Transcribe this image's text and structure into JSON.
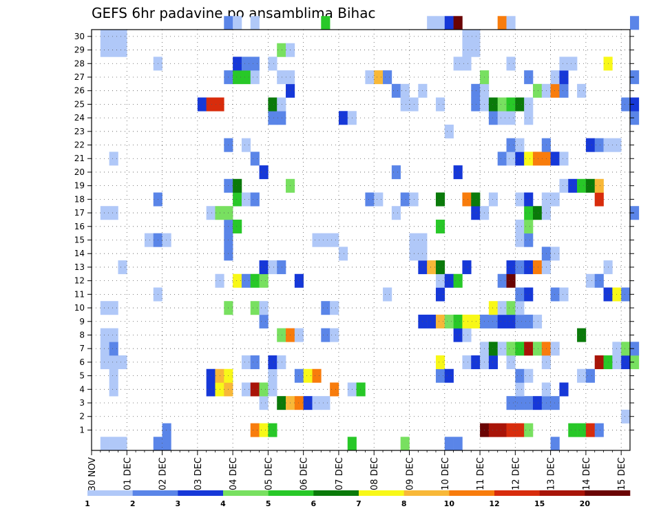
{
  "chart_data": {
    "type": "heatmap",
    "title": "GEFS 6hr padavine po ansamblima Bihac",
    "xlabel": "",
    "ylabel": "",
    "x_ticks": [
      "30 NOV",
      "01 DEC",
      "02 DEC",
      "03 DEC",
      "04 DEC",
      "05 DEC",
      "06 DEC",
      "07 DEC",
      "08 DEC",
      "09 DEC",
      "10 DEC",
      "11 DEC",
      "12 DEC",
      "13 DEC",
      "14 DEC",
      "15 DEC"
    ],
    "x_range_steps": [
      0,
      61
    ],
    "steps_per_day": 4,
    "y_ticks": [
      1,
      2,
      3,
      4,
      5,
      6,
      7,
      8,
      9,
      10,
      11,
      12,
      13,
      14,
      15,
      16,
      17,
      18,
      19,
      20,
      21,
      22,
      23,
      24,
      25,
      26,
      27,
      28,
      29,
      30
    ],
    "y_range": [
      0,
      30
    ],
    "grid": true,
    "colorbar": {
      "labels": [
        "1",
        "2",
        "3",
        "4",
        "5",
        "6",
        "7",
        "8",
        "10",
        "12",
        "15",
        "20"
      ],
      "colors": [
        "#b0c8f8",
        "#5a85e8",
        "#1638d8",
        "#78e060",
        "#28c828",
        "#0a7a0a",
        "#f8f818",
        "#f8b838",
        "#f87c0c",
        "#d82c0c",
        "#a81408",
        "#6a0404"
      ]
    },
    "cells": [
      [
        1,
        0,
        1
      ],
      [
        2,
        0,
        1
      ],
      [
        3,
        0,
        1
      ],
      [
        7,
        0,
        2
      ],
      [
        8,
        0,
        2
      ],
      [
        29,
        0,
        5
      ],
      [
        35,
        0,
        4
      ],
      [
        40,
        0,
        2
      ],
      [
        41,
        0,
        2
      ],
      [
        52,
        0,
        2
      ],
      [
        8,
        1,
        2
      ],
      [
        18,
        1,
        9
      ],
      [
        19,
        1,
        7
      ],
      [
        20,
        1,
        5
      ],
      [
        44,
        1,
        12
      ],
      [
        45,
        1,
        11
      ],
      [
        46,
        1,
        11
      ],
      [
        47,
        1,
        10
      ],
      [
        48,
        1,
        10
      ],
      [
        49,
        1,
        4
      ],
      [
        54,
        1,
        5
      ],
      [
        55,
        1,
        5
      ],
      [
        56,
        1,
        10
      ],
      [
        57,
        1,
        2
      ],
      [
        60,
        2,
        1
      ],
      [
        19,
        3,
        1
      ],
      [
        21,
        3,
        6
      ],
      [
        22,
        3,
        8
      ],
      [
        23,
        3,
        9
      ],
      [
        24,
        3,
        3
      ],
      [
        25,
        3,
        1
      ],
      [
        26,
        3,
        1
      ],
      [
        47,
        3,
        2
      ],
      [
        48,
        3,
        2
      ],
      [
        49,
        3,
        2
      ],
      [
        50,
        3,
        3
      ],
      [
        51,
        3,
        2
      ],
      [
        52,
        3,
        2
      ],
      [
        2,
        4,
        1
      ],
      [
        13,
        4,
        3
      ],
      [
        14,
        4,
        7
      ],
      [
        15,
        4,
        8
      ],
      [
        17,
        4,
        1
      ],
      [
        18,
        4,
        11
      ],
      [
        19,
        4,
        4
      ],
      [
        20,
        4,
        1
      ],
      [
        27,
        4,
        9
      ],
      [
        29,
        4,
        1
      ],
      [
        30,
        4,
        5
      ],
      [
        48,
        4,
        1
      ],
      [
        51,
        4,
        1
      ],
      [
        53,
        4,
        3
      ],
      [
        2,
        5,
        1
      ],
      [
        13,
        5,
        3
      ],
      [
        14,
        5,
        8
      ],
      [
        15,
        5,
        7
      ],
      [
        20,
        5,
        1
      ],
      [
        23,
        5,
        2
      ],
      [
        24,
        5,
        7
      ],
      [
        25,
        5,
        9
      ],
      [
        39,
        5,
        2
      ],
      [
        40,
        5,
        3
      ],
      [
        48,
        5,
        2
      ],
      [
        49,
        5,
        1
      ],
      [
        55,
        5,
        1
      ],
      [
        56,
        5,
        2
      ],
      [
        1,
        6,
        1
      ],
      [
        2,
        6,
        1
      ],
      [
        3,
        6,
        1
      ],
      [
        17,
        6,
        1
      ],
      [
        18,
        6,
        2
      ],
      [
        20,
        6,
        3
      ],
      [
        21,
        6,
        1
      ],
      [
        39,
        6,
        7
      ],
      [
        42,
        6,
        1
      ],
      [
        43,
        6,
        3
      ],
      [
        44,
        6,
        1
      ],
      [
        45,
        6,
        3
      ],
      [
        47,
        6,
        1
      ],
      [
        51,
        6,
        1
      ],
      [
        57,
        6,
        11
      ],
      [
        58,
        6,
        5
      ],
      [
        59,
        6,
        1
      ],
      [
        60,
        6,
        3
      ],
      [
        61,
        6,
        4
      ],
      [
        1,
        7,
        1
      ],
      [
        2,
        7,
        2
      ],
      [
        44,
        7,
        1
      ],
      [
        45,
        7,
        6
      ],
      [
        46,
        7,
        1
      ],
      [
        47,
        7,
        4
      ],
      [
        48,
        7,
        5
      ],
      [
        49,
        7,
        11
      ],
      [
        50,
        7,
        4
      ],
      [
        51,
        7,
        9
      ],
      [
        52,
        7,
        1
      ],
      [
        59,
        7,
        1
      ],
      [
        60,
        7,
        4
      ],
      [
        61,
        7,
        2
      ],
      [
        1,
        8,
        1
      ],
      [
        2,
        8,
        1
      ],
      [
        21,
        8,
        4
      ],
      [
        22,
        8,
        9
      ],
      [
        23,
        8,
        1
      ],
      [
        26,
        8,
        2
      ],
      [
        27,
        8,
        1
      ],
      [
        41,
        8,
        3
      ],
      [
        42,
        8,
        1
      ],
      [
        55,
        8,
        6
      ],
      [
        19,
        9,
        2
      ],
      [
        37,
        9,
        3
      ],
      [
        38,
        9,
        3
      ],
      [
        39,
        9,
        8
      ],
      [
        40,
        9,
        4
      ],
      [
        41,
        9,
        5
      ],
      [
        42,
        9,
        7
      ],
      [
        43,
        9,
        7
      ],
      [
        44,
        9,
        2
      ],
      [
        45,
        9,
        2
      ],
      [
        46,
        9,
        3
      ],
      [
        47,
        9,
        3
      ],
      [
        48,
        9,
        2
      ],
      [
        49,
        9,
        2
      ],
      [
        50,
        9,
        1
      ],
      [
        1,
        10,
        1
      ],
      [
        2,
        10,
        1
      ],
      [
        15,
        10,
        4
      ],
      [
        18,
        10,
        4
      ],
      [
        19,
        10,
        1
      ],
      [
        26,
        10,
        2
      ],
      [
        27,
        10,
        1
      ],
      [
        45,
        10,
        7
      ],
      [
        46,
        10,
        1
      ],
      [
        47,
        10,
        4
      ],
      [
        48,
        10,
        1
      ],
      [
        7,
        11,
        1
      ],
      [
        33,
        11,
        1
      ],
      [
        39,
        11,
        3
      ],
      [
        48,
        11,
        2
      ],
      [
        49,
        11,
        3
      ],
      [
        52,
        11,
        2
      ],
      [
        53,
        11,
        1
      ],
      [
        58,
        11,
        3
      ],
      [
        59,
        11,
        7
      ],
      [
        60,
        11,
        2
      ],
      [
        14,
        12,
        1
      ],
      [
        16,
        12,
        7
      ],
      [
        17,
        12,
        2
      ],
      [
        18,
        12,
        5
      ],
      [
        19,
        12,
        4
      ],
      [
        23,
        12,
        3
      ],
      [
        39,
        12,
        1
      ],
      [
        40,
        12,
        3
      ],
      [
        41,
        12,
        5
      ],
      [
        46,
        12,
        2
      ],
      [
        47,
        12,
        12
      ],
      [
        56,
        12,
        1
      ],
      [
        57,
        12,
        2
      ],
      [
        3,
        13,
        1
      ],
      [
        19,
        13,
        3
      ],
      [
        20,
        13,
        1
      ],
      [
        21,
        13,
        2
      ],
      [
        37,
        13,
        3
      ],
      [
        38,
        13,
        8
      ],
      [
        39,
        13,
        6
      ],
      [
        42,
        13,
        3
      ],
      [
        47,
        13,
        3
      ],
      [
        48,
        13,
        2
      ],
      [
        49,
        13,
        3
      ],
      [
        50,
        13,
        9
      ],
      [
        51,
        13,
        1
      ],
      [
        58,
        13,
        1
      ],
      [
        15,
        14,
        2
      ],
      [
        28,
        14,
        1
      ],
      [
        36,
        14,
        1
      ],
      [
        37,
        14,
        1
      ],
      [
        51,
        14,
        2
      ],
      [
        52,
        14,
        1
      ],
      [
        6,
        15,
        1
      ],
      [
        7,
        15,
        2
      ],
      [
        8,
        15,
        1
      ],
      [
        15,
        15,
        2
      ],
      [
        25,
        15,
        1
      ],
      [
        26,
        15,
        1
      ],
      [
        27,
        15,
        1
      ],
      [
        36,
        15,
        1
      ],
      [
        37,
        15,
        1
      ],
      [
        48,
        15,
        1
      ],
      [
        49,
        15,
        2
      ],
      [
        15,
        16,
        2
      ],
      [
        16,
        16,
        5
      ],
      [
        39,
        16,
        5
      ],
      [
        48,
        16,
        1
      ],
      [
        49,
        16,
        4
      ],
      [
        1,
        17,
        1
      ],
      [
        2,
        17,
        1
      ],
      [
        13,
        17,
        1
      ],
      [
        14,
        17,
        4
      ],
      [
        15,
        17,
        4
      ],
      [
        34,
        17,
        1
      ],
      [
        43,
        17,
        3
      ],
      [
        44,
        17,
        1
      ],
      [
        49,
        17,
        5
      ],
      [
        50,
        17,
        6
      ],
      [
        51,
        17,
        1
      ],
      [
        61,
        17,
        2
      ],
      [
        7,
        18,
        2
      ],
      [
        16,
        18,
        5
      ],
      [
        17,
        18,
        1
      ],
      [
        18,
        18,
        2
      ],
      [
        31,
        18,
        2
      ],
      [
        32,
        18,
        1
      ],
      [
        35,
        18,
        2
      ],
      [
        36,
        18,
        1
      ],
      [
        39,
        18,
        6
      ],
      [
        42,
        18,
        9
      ],
      [
        43,
        18,
        6
      ],
      [
        45,
        18,
        1
      ],
      [
        48,
        18,
        1
      ],
      [
        49,
        18,
        3
      ],
      [
        51,
        18,
        1
      ],
      [
        52,
        18,
        1
      ],
      [
        57,
        18,
        10
      ],
      [
        15,
        19,
        2
      ],
      [
        16,
        19,
        6
      ],
      [
        22,
        19,
        4
      ],
      [
        53,
        19,
        1
      ],
      [
        54,
        19,
        3
      ],
      [
        55,
        19,
        5
      ],
      [
        56,
        19,
        6
      ],
      [
        57,
        19,
        8
      ],
      [
        19,
        20,
        3
      ],
      [
        34,
        20,
        2
      ],
      [
        41,
        20,
        3
      ],
      [
        2,
        21,
        1
      ],
      [
        18,
        21,
        2
      ],
      [
        46,
        21,
        2
      ],
      [
        47,
        21,
        1
      ],
      [
        48,
        21,
        3
      ],
      [
        49,
        21,
        7
      ],
      [
        50,
        21,
        9
      ],
      [
        51,
        21,
        9
      ],
      [
        52,
        21,
        3
      ],
      [
        53,
        21,
        1
      ],
      [
        15,
        22,
        2
      ],
      [
        17,
        22,
        1
      ],
      [
        47,
        22,
        2
      ],
      [
        48,
        22,
        1
      ],
      [
        51,
        22,
        2
      ],
      [
        56,
        22,
        3
      ],
      [
        57,
        22,
        2
      ],
      [
        58,
        22,
        1
      ],
      [
        59,
        22,
        1
      ],
      [
        40,
        23,
        1
      ],
      [
        20,
        24,
        2
      ],
      [
        21,
        24,
        2
      ],
      [
        28,
        24,
        3
      ],
      [
        29,
        24,
        1
      ],
      [
        45,
        24,
        2
      ],
      [
        46,
        24,
        1
      ],
      [
        47,
        24,
        1
      ],
      [
        49,
        24,
        1
      ],
      [
        61,
        24,
        2
      ],
      [
        12,
        25,
        3
      ],
      [
        13,
        25,
        10
      ],
      [
        14,
        25,
        10
      ],
      [
        20,
        25,
        6
      ],
      [
        21,
        25,
        1
      ],
      [
        35,
        25,
        1
      ],
      [
        36,
        25,
        1
      ],
      [
        39,
        25,
        1
      ],
      [
        43,
        25,
        2
      ],
      [
        44,
        25,
        1
      ],
      [
        45,
        25,
        6
      ],
      [
        46,
        25,
        4
      ],
      [
        47,
        25,
        5
      ],
      [
        48,
        25,
        6
      ],
      [
        49,
        25,
        1
      ],
      [
        60,
        25,
        2
      ],
      [
        61,
        25,
        3
      ],
      [
        22,
        26,
        3
      ],
      [
        34,
        26,
        2
      ],
      [
        35,
        26,
        1
      ],
      [
        37,
        26,
        1
      ],
      [
        43,
        26,
        2
      ],
      [
        44,
        26,
        1
      ],
      [
        50,
        26,
        4
      ],
      [
        51,
        26,
        1
      ],
      [
        52,
        26,
        9
      ],
      [
        53,
        26,
        2
      ],
      [
        55,
        26,
        1
      ],
      [
        15,
        27,
        2
      ],
      [
        16,
        27,
        5
      ],
      [
        17,
        27,
        5
      ],
      [
        18,
        27,
        1
      ],
      [
        21,
        27,
        1
      ],
      [
        22,
        27,
        1
      ],
      [
        31,
        27,
        1
      ],
      [
        32,
        27,
        8
      ],
      [
        33,
        27,
        2
      ],
      [
        44,
        27,
        4
      ],
      [
        49,
        27,
        2
      ],
      [
        52,
        27,
        1
      ],
      [
        53,
        27,
        3
      ],
      [
        61,
        27,
        2
      ],
      [
        7,
        28,
        1
      ],
      [
        16,
        28,
        3
      ],
      [
        17,
        28,
        2
      ],
      [
        18,
        28,
        2
      ],
      [
        20,
        28,
        1
      ],
      [
        41,
        28,
        1
      ],
      [
        42,
        28,
        1
      ],
      [
        47,
        28,
        1
      ],
      [
        53,
        28,
        1
      ],
      [
        54,
        28,
        1
      ],
      [
        58,
        28,
        7
      ],
      [
        1,
        29,
        1
      ],
      [
        2,
        29,
        1
      ],
      [
        3,
        29,
        1
      ],
      [
        21,
        29,
        4
      ],
      [
        22,
        29,
        1
      ],
      [
        42,
        29,
        1
      ],
      [
        43,
        29,
        1
      ],
      [
        1,
        30,
        1
      ],
      [
        2,
        30,
        1
      ],
      [
        3,
        30,
        1
      ],
      [
        42,
        30,
        1
      ],
      [
        43,
        30,
        1
      ],
      [
        15,
        31,
        2
      ],
      [
        16,
        31,
        1
      ],
      [
        18,
        31,
        1
      ],
      [
        26,
        31,
        5
      ],
      [
        38,
        31,
        1
      ],
      [
        39,
        31,
        1
      ],
      [
        40,
        31,
        3
      ],
      [
        41,
        31,
        12
      ],
      [
        46,
        31,
        9
      ],
      [
        47,
        31,
        1
      ],
      [
        61,
        31,
        2
      ]
    ]
  }
}
